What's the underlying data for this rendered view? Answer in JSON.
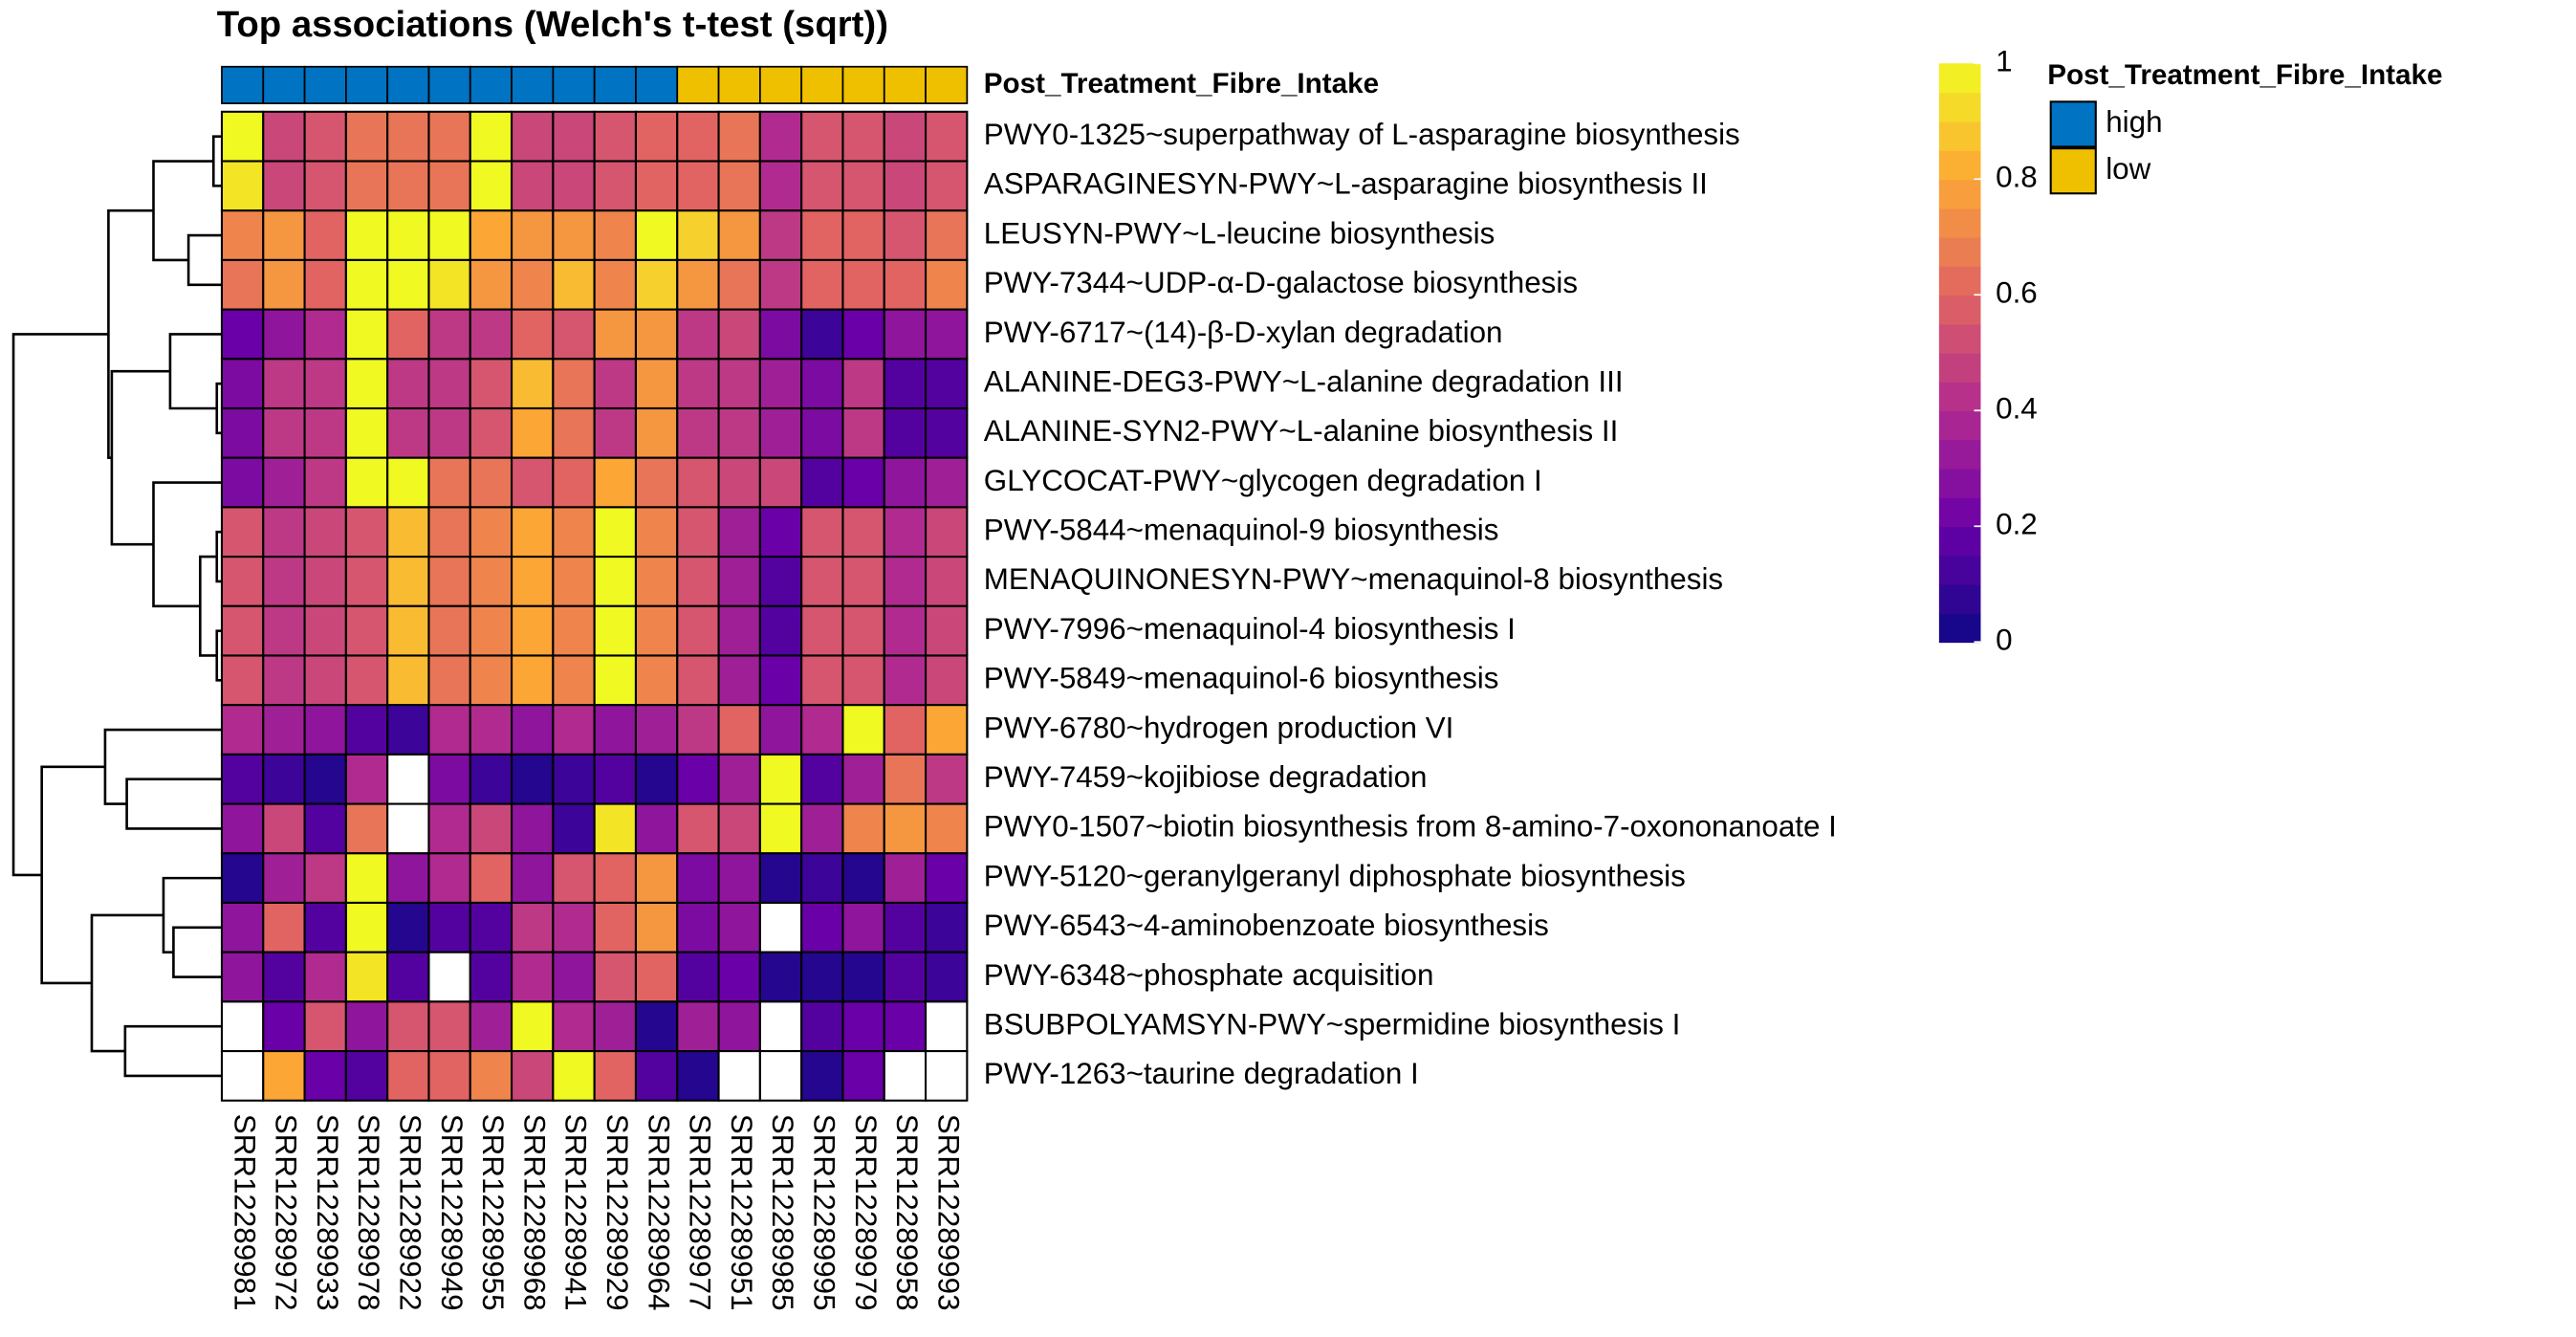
{
  "chart_data": {
    "type": "heatmap",
    "title": "Top associations (Welch's t-test (sqrt))",
    "categories": [
      "SRR12289981",
      "SRR12289972",
      "SRR12289933",
      "SRR12289978",
      "SRR12289922",
      "SRR12289949",
      "SRR12289955",
      "SRR12289968",
      "SRR12289941",
      "SRR12289929",
      "SRR12289964",
      "SRR12289977",
      "SRR12289951",
      "SRR12289985",
      "SRR12289995",
      "SRR12289979",
      "SRR12289958",
      "SRR12289993"
    ],
    "rows": [
      "PWY0-1325~superpathway of L-asparagine biosynthesis",
      "ASPARAGINESYN-PWY~L-asparagine biosynthesis II",
      "LEUSYN-PWY~L-leucine biosynthesis",
      "PWY-7344~UDP-α-D-galactose biosynthesis",
      "PWY-6717~(14)-β-D-xylan degradation",
      "ALANINE-DEG3-PWY~L-alanine degradation III",
      "ALANINE-SYN2-PWY~L-alanine biosynthesis II",
      "GLYCOCAT-PWY~glycogen degradation I",
      "PWY-5844~menaquinol-9 biosynthesis",
      "MENAQUINONESYN-PWY~menaquinol-8 biosynthesis",
      "PWY-7996~menaquinol-4 biosynthesis I",
      "PWY-5849~menaquinol-6 biosynthesis",
      "PWY-6780~hydrogen production VI",
      "PWY-7459~kojibiose degradation",
      "PWY0-1507~biotin biosynthesis from 8-amino-7-oxononanoate I",
      "PWY-5120~geranylgeranyl diphosphate biosynthesis",
      "PWY-6543~4-aminobenzoate biosynthesis",
      "PWY-6348~phosphate acquisition",
      "BSUBPOLYAMSYN-PWY~spermidine biosynthesis I",
      "PWY-1263~taurine degradation I"
    ],
    "values": [
      [
        1,
        0.5,
        0.55,
        0.65,
        0.65,
        0.65,
        1,
        0.5,
        0.5,
        0.55,
        0.6,
        0.6,
        0.65,
        0.4,
        0.55,
        0.55,
        0.5,
        0.55
      ],
      [
        0.95,
        0.5,
        0.55,
        0.65,
        0.65,
        0.65,
        1,
        0.5,
        0.5,
        0.55,
        0.6,
        0.6,
        0.65,
        0.4,
        0.55,
        0.55,
        0.5,
        0.55
      ],
      [
        0.7,
        0.75,
        0.6,
        1,
        1,
        1,
        0.8,
        0.75,
        0.75,
        0.7,
        1,
        0.9,
        0.75,
        0.45,
        0.6,
        0.6,
        0.55,
        0.65
      ],
      [
        0.65,
        0.75,
        0.6,
        1,
        1,
        0.95,
        0.75,
        0.7,
        0.85,
        0.7,
        0.9,
        0.75,
        0.65,
        0.45,
        0.6,
        0.6,
        0.6,
        0.7
      ],
      [
        0.2,
        0.3,
        0.4,
        1,
        0.6,
        0.45,
        0.45,
        0.6,
        0.55,
        0.75,
        0.75,
        0.45,
        0.5,
        0.25,
        0.1,
        0.2,
        0.3,
        0.3
      ],
      [
        0.25,
        0.45,
        0.45,
        1,
        0.45,
        0.45,
        0.55,
        0.85,
        0.65,
        0.45,
        0.75,
        0.45,
        0.45,
        0.35,
        0.25,
        0.45,
        0.15,
        0.15
      ],
      [
        0.25,
        0.45,
        0.45,
        1,
        0.45,
        0.45,
        0.55,
        0.8,
        0.65,
        0.45,
        0.75,
        0.45,
        0.45,
        0.35,
        0.25,
        0.45,
        0.15,
        0.15
      ],
      [
        0.25,
        0.35,
        0.45,
        1,
        1,
        0.65,
        0.65,
        0.55,
        0.6,
        0.8,
        0.65,
        0.55,
        0.5,
        0.5,
        0.15,
        0.2,
        0.3,
        0.35
      ],
      [
        0.55,
        0.45,
        0.5,
        0.55,
        0.85,
        0.65,
        0.7,
        0.8,
        0.7,
        1,
        0.7,
        0.55,
        0.35,
        0.2,
        0.55,
        0.55,
        0.4,
        0.5
      ],
      [
        0.55,
        0.45,
        0.5,
        0.55,
        0.85,
        0.65,
        0.7,
        0.8,
        0.7,
        1,
        0.7,
        0.55,
        0.35,
        0.15,
        0.55,
        0.55,
        0.4,
        0.5
      ],
      [
        0.55,
        0.45,
        0.5,
        0.55,
        0.85,
        0.65,
        0.7,
        0.8,
        0.7,
        1,
        0.7,
        0.55,
        0.35,
        0.15,
        0.55,
        0.55,
        0.4,
        0.5
      ],
      [
        0.55,
        0.45,
        0.5,
        0.55,
        0.85,
        0.65,
        0.7,
        0.8,
        0.7,
        1,
        0.7,
        0.55,
        0.35,
        0.2,
        0.55,
        0.55,
        0.4,
        0.5
      ],
      [
        0.4,
        0.35,
        0.3,
        0.15,
        0.1,
        0.4,
        0.4,
        0.3,
        0.4,
        0.3,
        0.35,
        0.45,
        0.6,
        0.3,
        0.4,
        1,
        0.6,
        0.8
      ],
      [
        0.15,
        0.1,
        0.05,
        0.4,
        null,
        0.25,
        0.1,
        0.05,
        0.1,
        0.15,
        0.05,
        0.2,
        0.35,
        1,
        0.15,
        0.35,
        0.65,
        0.45
      ],
      [
        0.3,
        0.5,
        0.15,
        0.65,
        null,
        0.4,
        0.5,
        0.3,
        0.1,
        0.95,
        0.3,
        0.55,
        0.5,
        1,
        0.35,
        0.7,
        0.75,
        0.7
      ],
      [
        0.05,
        0.35,
        0.45,
        1,
        0.3,
        0.4,
        0.6,
        0.3,
        0.55,
        0.6,
        0.75,
        0.25,
        0.3,
        0.05,
        0.1,
        0.05,
        0.35,
        0.2
      ],
      [
        0.3,
        0.6,
        0.15,
        1,
        0.05,
        0.15,
        0.15,
        0.45,
        0.4,
        0.6,
        0.75,
        0.25,
        0.3,
        null,
        0.2,
        0.3,
        0.15,
        0.1
      ],
      [
        0.3,
        0.15,
        0.4,
        0.95,
        0.15,
        null,
        0.15,
        0.4,
        0.3,
        0.55,
        0.6,
        0.15,
        0.2,
        0.05,
        0.05,
        0.05,
        0.15,
        0.1
      ],
      [
        null,
        0.2,
        0.55,
        0.3,
        0.55,
        0.55,
        0.35,
        1,
        0.4,
        0.35,
        0.05,
        0.35,
        0.3,
        null,
        0.15,
        0.2,
        0.2,
        null
      ],
      [
        null,
        0.8,
        0.2,
        0.15,
        0.6,
        0.6,
        0.7,
        0.5,
        1,
        0.6,
        0.15,
        0.05,
        null,
        null,
        0.05,
        0.2,
        null,
        null
      ]
    ],
    "annotation": {
      "name": "Post_Treatment_Fibre_Intake",
      "levels": [
        {
          "name": "high",
          "color": "#0073C2"
        },
        {
          "name": "low",
          "color": "#EFC000"
        }
      ],
      "column_levels": [
        0,
        0,
        0,
        0,
        0,
        0,
        0,
        0,
        0,
        0,
        0,
        1,
        1,
        1,
        1,
        1,
        1,
        1
      ]
    },
    "colorbar": {
      "lim": [
        0,
        1
      ],
      "ticks": [
        0,
        0.2,
        0.4,
        0.6,
        0.8,
        1
      ],
      "colors": [
        "#0d0887",
        "#6a00a8",
        "#b12a90",
        "#e16462",
        "#fca636",
        "#f0f921"
      ]
    }
  }
}
